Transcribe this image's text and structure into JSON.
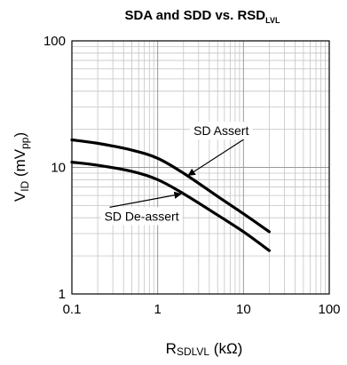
{
  "chart_data": {
    "type": "line",
    "title": {
      "main": "SDA and SDD vs. RSD",
      "sub": "LVL"
    },
    "xlabel": {
      "main": "R",
      "sub": "SDLVL",
      "tail": " (kΩ)"
    },
    "ylabel": {
      "main": "V",
      "sub1": "ID",
      "mid": " (mV",
      "sub2": "pp",
      "tail": ")"
    },
    "x_scale": "log",
    "y_scale": "log",
    "xlim": [
      0.1,
      100
    ],
    "ylim": [
      1,
      100
    ],
    "x_ticks": [
      {
        "value": 0.1,
        "label": "0.1"
      },
      {
        "value": 1,
        "label": "1"
      },
      {
        "value": 10,
        "label": "10"
      },
      {
        "value": 100,
        "label": "100"
      }
    ],
    "y_ticks": [
      {
        "value": 1,
        "label": "1"
      },
      {
        "value": 10,
        "label": "10"
      },
      {
        "value": 100,
        "label": "100"
      }
    ],
    "grid": true,
    "series": [
      {
        "name": "SD Assert",
        "x": [
          0.1,
          0.2,
          0.5,
          1,
          2,
          5,
          10,
          20
        ],
        "y": [
          16.5,
          15.5,
          13.7,
          11.8,
          9.0,
          5.9,
          4.3,
          3.1
        ]
      },
      {
        "name": "SD De-assert",
        "x": [
          0.1,
          0.2,
          0.5,
          1,
          2,
          5,
          10,
          20
        ],
        "y": [
          11.0,
          10.4,
          9.3,
          8.0,
          6.2,
          4.2,
          3.1,
          2.2
        ]
      }
    ],
    "annotations": [
      {
        "text": "SD Assert",
        "series": 0,
        "point_x": 2.5,
        "text_x": 5.5,
        "text_y": 18
      },
      {
        "text": "SD De-assert",
        "series": 1,
        "point_x": 1.7,
        "text_x": 0.65,
        "text_y": 3.8
      }
    ]
  }
}
